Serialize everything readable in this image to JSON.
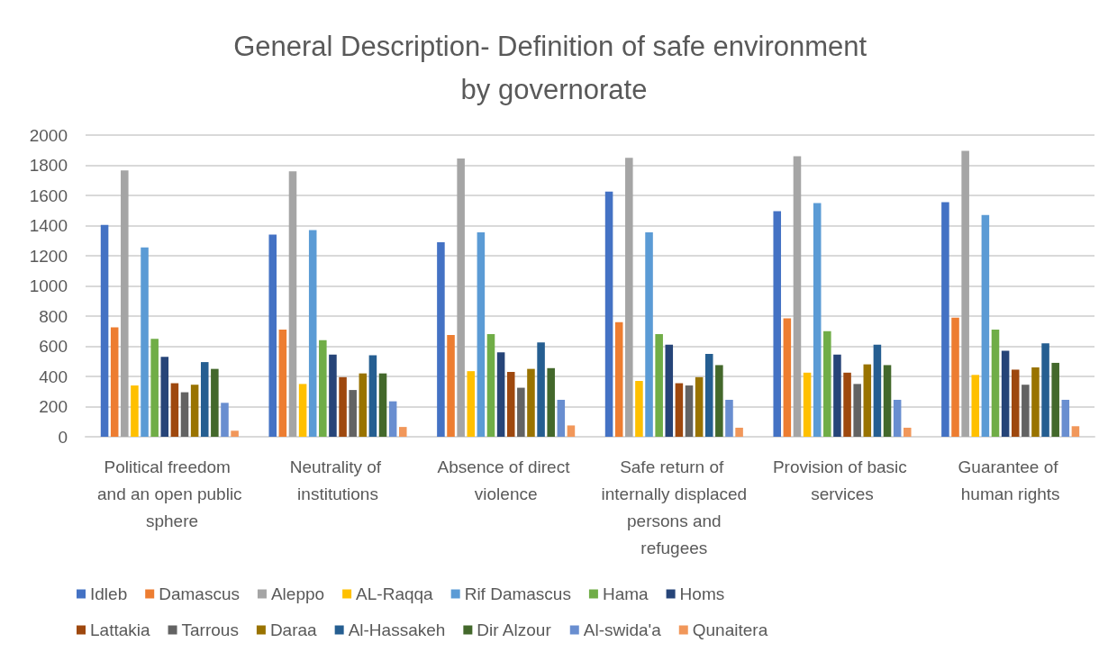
{
  "chart_data": {
    "type": "bar",
    "title": "General Description- Definition of safe environment by governorate",
    "categories": [
      "Political freedom and an open public sphere",
      "Neutrality of institutions",
      "Absence of direct violence",
      "Safe return of internally displaced persons and refugees",
      "Provision of basic services",
      "Guarantee of human rights"
    ],
    "series": [
      {
        "name": "Idleb",
        "color": "#4472c4",
        "values": [
          1405,
          1340,
          1290,
          1625,
          1495,
          1555
        ]
      },
      {
        "name": "Damascus",
        "color": "#ed7d31",
        "values": [
          725,
          710,
          675,
          760,
          785,
          790
        ]
      },
      {
        "name": "Aleppo",
        "color": "#a5a5a5",
        "values": [
          1765,
          1760,
          1845,
          1850,
          1860,
          1895
        ]
      },
      {
        "name": "AL-Raqqa",
        "color": "#ffc000",
        "values": [
          340,
          350,
          435,
          370,
          425,
          410
        ]
      },
      {
        "name": "Rif Damascus",
        "color": "#5b9bd5",
        "values": [
          1255,
          1370,
          1355,
          1355,
          1550,
          1470
        ]
      },
      {
        "name": "Hama",
        "color": "#70ad47",
        "values": [
          650,
          640,
          680,
          680,
          700,
          710
        ]
      },
      {
        "name": "Homs",
        "color": "#264478",
        "values": [
          530,
          545,
          560,
          610,
          545,
          570
        ]
      },
      {
        "name": "Lattakia",
        "color": "#9e480e",
        "values": [
          355,
          395,
          430,
          355,
          425,
          445
        ]
      },
      {
        "name": "Tarrous",
        "color": "#636363",
        "values": [
          295,
          310,
          325,
          340,
          350,
          345
        ]
      },
      {
        "name": "Daraa",
        "color": "#997300",
        "values": [
          345,
          420,
          450,
          395,
          480,
          460
        ]
      },
      {
        "name": "Al-Hassakeh",
        "color": "#255e91",
        "values": [
          495,
          540,
          625,
          550,
          610,
          620
        ]
      },
      {
        "name": "Dir Alzour",
        "color": "#43682b",
        "values": [
          450,
          420,
          455,
          475,
          475,
          490
        ]
      },
      {
        "name": "Al-swida'a",
        "color": "#698ed0",
        "values": [
          225,
          235,
          245,
          245,
          245,
          245
        ]
      },
      {
        "name": "Qunaitera",
        "color": "#f1975a",
        "values": [
          40,
          65,
          75,
          60,
          60,
          70
        ]
      }
    ],
    "ylim": [
      0,
      2000
    ],
    "yticks": [
      0,
      200,
      400,
      600,
      800,
      1000,
      1200,
      1400,
      1600,
      1800,
      2000
    ],
    "grid": "y",
    "legend": "bottom"
  }
}
